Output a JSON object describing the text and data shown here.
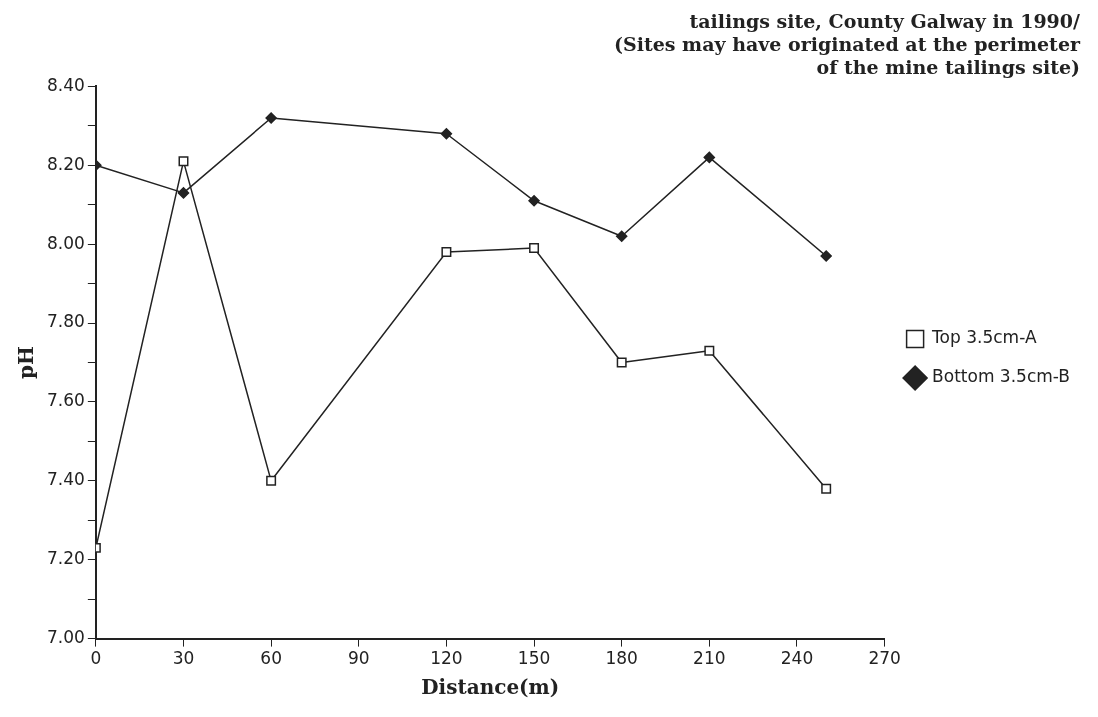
{
  "chart_data": {
    "type": "line",
    "title": "tailings site, County Galway in 1990/\n(Sites may have originated at the perimeter\nof the mine tailings site)",
    "xlabel": "Distance(m)",
    "ylabel": "pH",
    "x": [
      0,
      30,
      60,
      120,
      150,
      180,
      210,
      250
    ],
    "series": [
      {
        "name": "Top 3.5cm-A",
        "color": "#222222",
        "marker": "square",
        "values": [
          7.23,
          8.21,
          7.4,
          7.98,
          7.99,
          7.7,
          7.73,
          7.38
        ]
      },
      {
        "name": "Bottom 3.5cm-B",
        "color": "#222222",
        "marker": "diamond",
        "values": [
          8.2,
          8.13,
          8.32,
          8.28,
          8.11,
          8.02,
          8.22,
          7.97
        ]
      }
    ],
    "xlim": [
      0,
      270
    ],
    "xticks": [
      0,
      30,
      60,
      90,
      120,
      150,
      180,
      210,
      240,
      270
    ],
    "ylim": [
      7.0,
      8.4
    ],
    "yticks": [
      {
        "value": 7.0,
        "label": "7.00"
      },
      {
        "value": 7.1,
        "label": null
      },
      {
        "value": 7.2,
        "label": "7.20"
      },
      {
        "value": 7.3,
        "label": null
      },
      {
        "value": 7.4,
        "label": "7.40"
      },
      {
        "value": 7.5,
        "label": null
      },
      {
        "value": 7.6,
        "label": "7.60"
      },
      {
        "value": 7.7,
        "label": null
      },
      {
        "value": 7.8,
        "label": "7.80"
      },
      {
        "value": 7.9,
        "label": null
      },
      {
        "value": 8.0,
        "label": "8.00"
      },
      {
        "value": 8.1,
        "label": null
      },
      {
        "value": 8.2,
        "label": "8.20"
      },
      {
        "value": 8.3,
        "label": null
      },
      {
        "value": 8.4,
        "label": "8.40"
      }
    ],
    "grid": false,
    "legend": "right",
    "line_style": "solid"
  }
}
